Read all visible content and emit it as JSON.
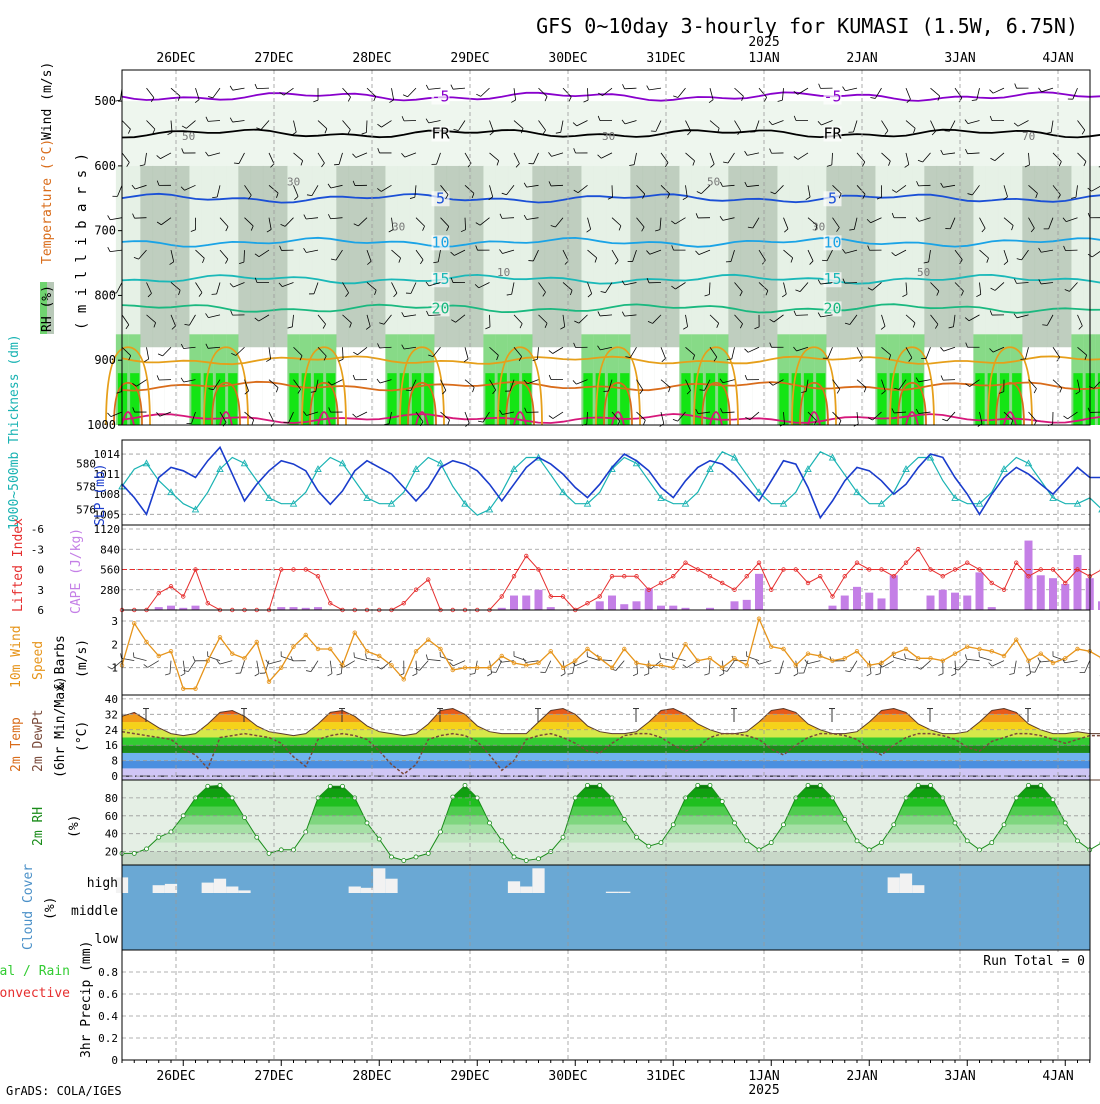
{
  "title": "GFS 0~10day 3-hourly for KUMASI (1.5W, 6.75N)",
  "credit": "GrADS: COLA/IGES",
  "colors": {
    "rh_light": "#e3f0e3",
    "rh_mid": "#b8c9b8",
    "rh_dark": "#8fa08f",
    "rh_green": "#6fd46f",
    "rh_bright": "#00e600",
    "temp_purple": "#8800cc",
    "temp_black": "#000000",
    "temp_blue": "#1a4fd6",
    "temp_sky": "#1aa3e6",
    "temp_teal": "#1ab8b8",
    "temp_sea": "#1ab87f",
    "temp_orange": "#e69f1a",
    "temp_darkorange": "#d96c1a",
    "temp_magenta": "#d6177a",
    "slp": "#1a3ccc",
    "thickness": "#1ab3b3",
    "cape": "#c47fe6",
    "lifted": "#e62e2e",
    "wind": "#e6941a",
    "dewpoint": "#7a4a3a",
    "rh2m": "#1a8c1a",
    "cloud_blue": "#6aa8d4",
    "cloud_white": "#f2f2f2"
  },
  "chart_data": {
    "type": "meteogram",
    "x_axis": {
      "days": [
        "26DEC",
        "27DEC",
        "28DEC",
        "29DEC",
        "30DEC",
        "31DEC",
        "1JAN",
        "2JAN",
        "3JAN",
        "4JAN"
      ],
      "year_label": "2025",
      "year_at_day": "1JAN",
      "start_hours_before_26DEC_00Z": 15,
      "step_hours": 3,
      "n_steps": 81
    },
    "panels": [
      {
        "id": "upper_air",
        "type": "contour+barbs",
        "ylabel_parts": [
          "RH (%)",
          "Temperature (°C)",
          "Wind (m/s)"
        ],
        "ylabel_unit": "( m i l l i b a r s )",
        "yticks": [
          500,
          600,
          700,
          800,
          900,
          1000
        ],
        "ylim": [
          452,
          1000
        ],
        "rh_contour_labels": [
          "50",
          "30",
          "30",
          "10",
          "30",
          "50",
          "30",
          "50",
          "70"
        ],
        "isotherms": [
          {
            "label": "-5",
            "level_hpa": 493,
            "color_key": "temp_purple"
          },
          {
            "label": "FR",
            "level_hpa": 550,
            "color_key": "temp_black"
          },
          {
            "label": "5",
            "level_hpa": 650,
            "color_key": "temp_blue"
          },
          {
            "label": "10",
            "level_hpa": 718,
            "color_key": "temp_sky"
          },
          {
            "label": "15",
            "level_hpa": 775,
            "color_key": "temp_teal"
          },
          {
            "label": "20",
            "level_hpa": 820,
            "color_key": "temp_sea"
          },
          {
            "label": "",
            "level_hpa": 900,
            "color_key": "temp_orange"
          },
          {
            "label": "",
            "level_hpa": 940,
            "color_key": "temp_darkorange"
          },
          {
            "label": "",
            "level_hpa": 990,
            "color_key": "temp_magenta"
          }
        ]
      },
      {
        "id": "slp_thickness",
        "type": "line",
        "ylabel_left": "1000~500mb Thickness (dm)",
        "ylabel_right": "SLP (mb)",
        "left_ticks": [
          576,
          578,
          580
        ],
        "right_ticks": [
          1005,
          1008,
          1011,
          1014
        ],
        "slp_mb": [
          1009.5,
          1007.5,
          1005,
          1010.5,
          1012,
          1011.5,
          1010.5,
          1013,
          1015,
          1011,
          1007,
          1009.5,
          1011.5,
          1013,
          1012.5,
          1011.5,
          1008.5,
          1006.5,
          1008.5,
          1011.5,
          1013,
          1012,
          1011,
          1009,
          1007,
          1009,
          1012,
          1013,
          1012.5,
          1011.5,
          1009.5,
          1007,
          1009.5,
          1012,
          1013.5,
          1012.5,
          1011,
          1009,
          1007.5,
          1009.5,
          1012,
          1014,
          1013,
          1011.5,
          1009,
          1007.5,
          1010,
          1012,
          1013,
          1012.5,
          1011,
          1009,
          1007,
          1010,
          1013,
          1012.5,
          1009,
          1004.5,
          1007,
          1010,
          1012,
          1011.5,
          1010,
          1008,
          1009.5,
          1012,
          1014,
          1013.5,
          1010.5,
          1008,
          1005,
          1008,
          1010.5,
          1012,
          1011,
          1009.5,
          1008,
          1010,
          1012,
          1010.5,
          1010.5
        ],
        "thickness_dm": [
          578,
          579.5,
          580,
          578.5,
          577.5,
          576.5,
          576,
          577.5,
          579.5,
          580.5,
          580,
          578.5,
          577,
          576.5,
          576.5,
          577.5,
          579.5,
          580.5,
          580,
          578.5,
          577,
          576.5,
          576.5,
          577.5,
          579.5,
          580.5,
          580,
          578,
          576.5,
          575.5,
          576,
          577.5,
          579.5,
          580.5,
          580.5,
          579,
          577.5,
          576.5,
          576.5,
          577.5,
          579.5,
          580.5,
          580,
          578.5,
          577,
          576.5,
          576.5,
          577.5,
          579.5,
          581,
          580.5,
          579,
          577.5,
          576.5,
          576.5,
          577.5,
          579.5,
          581,
          580.5,
          579,
          577.5,
          576.5,
          576.5,
          577.5,
          579.5,
          580.5,
          580.5,
          578.5,
          577,
          576.5,
          576.5,
          577.5,
          579.5,
          580.5,
          580,
          578.5,
          577,
          576.5,
          576.5,
          577,
          576
        ]
      },
      {
        "id": "cape_li",
        "type": "bar+line",
        "ylabel_left": "Lifted Index",
        "ylabel_right": "CAPE (J/kg)",
        "li_ticks": [
          "-6",
          "-3",
          "0",
          "3",
          "6"
        ],
        "cape_ticks": [
          "1120",
          "840",
          "560",
          "280"
        ],
        "cape_jkg": [
          0,
          0,
          0,
          40,
          60,
          30,
          60,
          0,
          0,
          0,
          0,
          0,
          0,
          40,
          40,
          30,
          40,
          0,
          0,
          0,
          0,
          0,
          0,
          0,
          0,
          0,
          0,
          0,
          0,
          0,
          0,
          30,
          200,
          200,
          280,
          40,
          0,
          0,
          0,
          120,
          200,
          80,
          120,
          300,
          60,
          60,
          30,
          0,
          30,
          0,
          120,
          140,
          500,
          0,
          0,
          0,
          0,
          0,
          60,
          200,
          320,
          240,
          160,
          480,
          0,
          0,
          200,
          280,
          240,
          200,
          520,
          40,
          0,
          0,
          960,
          480,
          440,
          360,
          760,
          440,
          120
        ],
        "lifted_index": [
          6,
          6,
          6,
          3.5,
          2.5,
          4,
          0,
          5,
          6,
          6,
          6,
          6,
          6,
          0,
          0,
          0,
          1,
          5,
          6,
          6,
          6,
          6,
          6,
          5,
          3,
          1.5,
          6,
          6,
          6,
          6,
          6,
          4,
          1,
          -2,
          0,
          4,
          4,
          6,
          5,
          4,
          1,
          1,
          1,
          3,
          2,
          1,
          -1,
          0,
          1,
          2,
          3,
          1,
          -1,
          3,
          0,
          0,
          2,
          1,
          4,
          1,
          -1,
          0,
          0,
          1,
          -1,
          -3,
          0,
          1,
          0,
          -1,
          0,
          2,
          3,
          -1,
          1,
          0,
          0,
          2,
          0,
          1,
          0
        ]
      },
      {
        "id": "wind10m",
        "type": "line+barbs",
        "ylabel_parts": [
          "10m Wind",
          "Speed",
          "& Barbs"
        ],
        "ylabel_unit": "(m/s)",
        "yticks": [
          1,
          2,
          3
        ],
        "speed_ms": [
          1.1,
          2.9,
          2.1,
          1.5,
          1.7,
          0.1,
          0.1,
          1.3,
          2.3,
          1.6,
          1.4,
          2.1,
          0.4,
          1.0,
          1.9,
          2.4,
          1.8,
          1.8,
          1.1,
          2.5,
          1.7,
          1.5,
          1.1,
          0.5,
          1.7,
          2.2,
          1.8,
          0.9,
          1.0,
          1.0,
          1.0,
          1.5,
          1.2,
          1.1,
          1.2,
          1.7,
          1.0,
          1.3,
          1.8,
          1.4,
          1.0,
          1.8,
          1.2,
          1.1,
          1.1,
          1.0,
          2.0,
          1.3,
          1.4,
          1.0,
          1.4,
          1.1,
          3.1,
          1.9,
          1.8,
          1.1,
          1.6,
          1.5,
          1.3,
          1.4,
          1.7,
          1.1,
          1.2,
          1.6,
          1.8,
          1.4,
          1.4,
          1.3,
          1.6,
          1.9,
          1.8,
          1.7,
          1.5,
          2.2,
          1.3,
          1.6,
          1.2,
          1.4,
          1.8,
          1.7,
          1.4
        ]
      },
      {
        "id": "temp2m",
        "type": "area+line",
        "ylabel_parts": [
          "2m Temp",
          "2m DewPt",
          "(6hr Min/Max)"
        ],
        "ylabel_unit": "(°C)",
        "yticks": [
          0,
          8,
          16,
          24,
          32,
          40
        ],
        "temperature_c": [
          31,
          33,
          29,
          25,
          22,
          21,
          22,
          27,
          33,
          34,
          31,
          26,
          23,
          22,
          21,
          22,
          27,
          33,
          34,
          31,
          26,
          23,
          22,
          21,
          22,
          27,
          34,
          35,
          32,
          26,
          23,
          22,
          22,
          22,
          28,
          34,
          35,
          32,
          26,
          23,
          22,
          22,
          23,
          28,
          34,
          35,
          32,
          27,
          24,
          22,
          22,
          23,
          28,
          34,
          35,
          33,
          27,
          24,
          22,
          22,
          23,
          28,
          34,
          35,
          33,
          27,
          24,
          22,
          22,
          23,
          28,
          34,
          35,
          33,
          27,
          24,
          22,
          22,
          23,
          22,
          22
        ],
        "dewpoint_c": [
          23,
          22,
          21,
          20,
          19,
          14,
          11,
          4,
          20,
          21,
          22,
          21,
          20,
          17,
          10,
          5,
          19,
          21,
          22,
          21,
          19,
          13,
          6,
          1,
          6,
          19,
          21,
          22,
          21,
          18,
          11,
          3,
          8,
          19,
          21,
          22,
          20,
          17,
          13,
          12,
          17,
          21,
          22,
          22,
          20,
          16,
          13,
          15,
          20,
          22,
          22,
          21,
          19,
          14,
          11,
          16,
          20,
          22,
          22,
          21,
          19,
          14,
          11,
          16,
          20,
          22,
          22,
          21,
          19,
          15,
          13,
          18,
          20,
          22,
          22,
          21,
          19,
          17,
          19,
          21,
          21
        ]
      },
      {
        "id": "rh2m",
        "type": "area",
        "ylabel": "2m RH",
        "ylabel_unit": "(%)",
        "yticks": [
          20,
          40,
          60,
          80
        ],
        "rh_percent": [
          18,
          18,
          23,
          36,
          42,
          60,
          80,
          93,
          94,
          80,
          58,
          36,
          18,
          22,
          22,
          42,
          80,
          93,
          93,
          80,
          52,
          34,
          14,
          10,
          14,
          18,
          42,
          81,
          94,
          80,
          52,
          32,
          14,
          10,
          12,
          20,
          36,
          80,
          94,
          94,
          80,
          56,
          36,
          26,
          30,
          50,
          80,
          94,
          94,
          76,
          52,
          32,
          22,
          30,
          50,
          80,
          94,
          94,
          80,
          56,
          32,
          22,
          30,
          50,
          80,
          94,
          94,
          80,
          52,
          32,
          22,
          30,
          50,
          80,
          94,
          94,
          78,
          52,
          32,
          22,
          30
        ],
        "fill_bands": [
          20,
          30,
          40,
          50,
          60,
          70,
          80,
          90,
          100
        ]
      },
      {
        "id": "cloud",
        "type": "bar",
        "ylabel": "Cloud Cover",
        "ylabel_unit": "(%)",
        "level_labels": [
          "high",
          "middle",
          "low"
        ],
        "high_pct": [
          60,
          0,
          0,
          30,
          35,
          0,
          0,
          40,
          55,
          25,
          10,
          0,
          0,
          0,
          0,
          0,
          0,
          0,
          0,
          25,
          20,
          95,
          55,
          0,
          0,
          0,
          0,
          0,
          0,
          0,
          0,
          0,
          45,
          25,
          95,
          0,
          0,
          0,
          0,
          0,
          5,
          5,
          0,
          0,
          0,
          0,
          0,
          0,
          0,
          0,
          0,
          0,
          0,
          0,
          0,
          0,
          0,
          0,
          0,
          0,
          0,
          0,
          0,
          60,
          75,
          30,
          0,
          0,
          0,
          0,
          0,
          0,
          0,
          0,
          0,
          0,
          0,
          0,
          0,
          0,
          0
        ],
        "middle_pct": [
          0,
          0,
          0,
          0,
          0,
          0,
          0,
          0,
          0,
          0,
          0,
          0,
          0,
          0,
          0,
          0,
          0,
          0,
          0,
          0,
          0,
          0,
          0,
          0,
          0,
          0,
          0,
          0,
          0,
          0,
          0,
          0,
          0,
          0,
          0,
          0,
          0,
          0,
          0,
          0,
          0,
          0,
          0,
          0,
          0,
          0,
          0,
          0,
          0,
          0,
          0,
          0,
          0,
          0,
          0,
          0,
          0,
          0,
          0,
          0,
          0,
          0,
          0,
          0,
          0,
          0,
          0,
          0,
          0,
          0,
          0,
          0,
          0,
          0,
          0,
          0,
          0,
          0,
          0,
          0,
          0
        ],
        "low_pct": [
          0,
          0,
          0,
          0,
          0,
          0,
          0,
          0,
          0,
          0,
          0,
          0,
          0,
          0,
          0,
          0,
          0,
          0,
          0,
          0,
          0,
          0,
          0,
          0,
          0,
          0,
          0,
          0,
          0,
          0,
          0,
          0,
          0,
          0,
          0,
          0,
          0,
          0,
          0,
          0,
          0,
          0,
          0,
          0,
          0,
          0,
          0,
          0,
          0,
          0,
          0,
          0,
          0,
          0,
          0,
          0,
          0,
          0,
          0,
          0,
          0,
          0,
          0,
          0,
          0,
          0,
          0,
          0,
          0,
          0,
          0,
          0,
          0,
          0,
          0,
          0,
          0,
          0,
          0,
          0,
          0
        ]
      },
      {
        "id": "precip",
        "type": "bar",
        "ylabel": "3hr Precip (mm)",
        "legend_total_label": "Total / Rain",
        "legend_conv_label": "Convective",
        "yticks": [
          "0",
          "0.2",
          "0.4",
          "0.6",
          "0.8"
        ],
        "ylim": [
          0,
          1
        ],
        "run_total_label": "Run Total = 0",
        "total_mm": [
          0,
          0,
          0,
          0,
          0,
          0,
          0,
          0,
          0,
          0,
          0,
          0,
          0,
          0,
          0,
          0,
          0,
          0,
          0,
          0,
          0,
          0,
          0,
          0,
          0,
          0,
          0,
          0,
          0,
          0,
          0,
          0,
          0,
          0,
          0,
          0,
          0,
          0,
          0,
          0,
          0,
          0,
          0,
          0,
          0,
          0,
          0,
          0,
          0,
          0,
          0,
          0,
          0,
          0,
          0,
          0,
          0,
          0,
          0,
          0,
          0,
          0,
          0,
          0,
          0,
          0,
          0,
          0,
          0,
          0,
          0,
          0,
          0,
          0,
          0,
          0,
          0,
          0,
          0,
          0,
          0
        ]
      }
    ]
  }
}
